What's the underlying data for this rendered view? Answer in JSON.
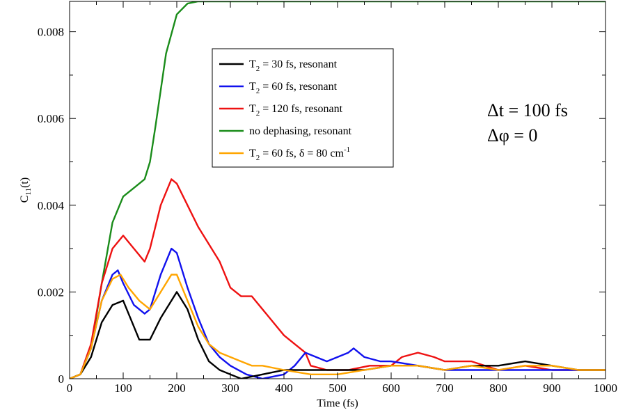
{
  "chart_data": {
    "type": "line",
    "xlabel": "Time (fs)",
    "ylabel": {
      "main": "C",
      "sub": "11",
      "suffix": "(t)"
    },
    "xlim": [
      0,
      1000
    ],
    "ylim": [
      0,
      0.0087
    ],
    "x_ticks": [
      0,
      100,
      200,
      300,
      400,
      500,
      600,
      700,
      800,
      900,
      1000
    ],
    "y_ticks": [
      0,
      0.002,
      0.004,
      0.006,
      0.008
    ],
    "y_tick_labels": [
      "0",
      "0.002",
      "0.004",
      "0.006",
      "0.008"
    ],
    "grid": false,
    "legend_position": "top-center",
    "annotations": [
      "Δt = 100 fs",
      "Δφ = 0"
    ],
    "series": [
      {
        "name": "no dephasing, resonant",
        "legend": {
          "pre": "no dephasing, resonant",
          "sub": "",
          "post": "",
          "sup": ""
        },
        "color": "#1a8c1a",
        "x": [
          0,
          20,
          40,
          60,
          80,
          100,
          120,
          140,
          150,
          160,
          180,
          200,
          220,
          240,
          260,
          300,
          400,
          500,
          600,
          700,
          800,
          900,
          1000
        ],
        "y": [
          0,
          0.0001,
          0.0007,
          0.0022,
          0.0036,
          0.0042,
          0.0044,
          0.0046,
          0.005,
          0.0058,
          0.0075,
          0.0084,
          0.00865,
          0.0087,
          0.0087,
          0.0087,
          0.0087,
          0.0087,
          0.0087,
          0.0087,
          0.0087,
          0.0087,
          0.0087
        ]
      },
      {
        "name": "T2 = 120 fs, resonant",
        "legend": {
          "pre": "T",
          "sub": "2",
          "post": " = 120 fs, resonant",
          "sup": ""
        },
        "color": "#ee1111",
        "x": [
          0,
          20,
          40,
          60,
          80,
          100,
          120,
          140,
          150,
          170,
          190,
          200,
          220,
          240,
          260,
          280,
          300,
          320,
          340,
          360,
          380,
          400,
          420,
          440,
          450,
          480,
          520,
          560,
          600,
          620,
          650,
          680,
          700,
          750,
          800,
          850,
          900,
          950,
          1000
        ],
        "y": [
          0,
          0.0001,
          0.0008,
          0.0022,
          0.003,
          0.0033,
          0.003,
          0.0027,
          0.003,
          0.004,
          0.0046,
          0.0045,
          0.004,
          0.0035,
          0.0031,
          0.0027,
          0.0021,
          0.0019,
          0.0019,
          0.0016,
          0.0013,
          0.001,
          0.0008,
          0.0006,
          0.0003,
          0.0002,
          0.0002,
          0.0003,
          0.0003,
          0.0005,
          0.0006,
          0.0005,
          0.0004,
          0.0004,
          0.0002,
          0.0003,
          0.0002,
          0.0002,
          0.0002
        ]
      },
      {
        "name": "T2 = 60 fs, resonant",
        "legend": {
          "pre": "T",
          "sub": "2",
          "post": " = 60 fs, resonant",
          "sup": ""
        },
        "color": "#1111ee",
        "x": [
          0,
          20,
          40,
          60,
          80,
          90,
          100,
          120,
          140,
          150,
          170,
          190,
          200,
          220,
          240,
          260,
          280,
          300,
          330,
          360,
          400,
          420,
          440,
          460,
          480,
          500,
          520,
          530,
          550,
          580,
          600,
          650,
          700,
          800,
          900,
          1000
        ],
        "y": [
          0,
          0.0001,
          0.0007,
          0.0018,
          0.0024,
          0.0025,
          0.0022,
          0.0017,
          0.0015,
          0.0016,
          0.0024,
          0.003,
          0.0029,
          0.0021,
          0.0014,
          0.0008,
          0.0005,
          0.0003,
          0.0001,
          0.0,
          0.0001,
          0.0003,
          0.0006,
          0.0005,
          0.0004,
          0.0005,
          0.0006,
          0.0007,
          0.0005,
          0.0004,
          0.0004,
          0.0003,
          0.0002,
          0.0002,
          0.0002,
          0.0002
        ]
      },
      {
        "name": "T2 = 30 fs, resonant",
        "legend": {
          "pre": "T",
          "sub": "2",
          "post": " = 30 fs, resonant",
          "sup": ""
        },
        "color": "#000000",
        "x": [
          0,
          20,
          40,
          60,
          80,
          100,
          120,
          130,
          150,
          170,
          190,
          200,
          220,
          240,
          260,
          280,
          300,
          320,
          360,
          400,
          450,
          500,
          550,
          600,
          650,
          700,
          750,
          800,
          850,
          900,
          950,
          1000
        ],
        "y": [
          0,
          0.0001,
          0.0005,
          0.0013,
          0.0017,
          0.0018,
          0.0012,
          0.0009,
          0.0009,
          0.0014,
          0.0018,
          0.002,
          0.0016,
          0.0009,
          0.0004,
          0.0002,
          0.0001,
          0.0,
          0.0001,
          0.0002,
          0.0002,
          0.0002,
          0.0002,
          0.0003,
          0.0003,
          0.0002,
          0.0003,
          0.0003,
          0.0004,
          0.0003,
          0.0002,
          0.0002
        ]
      },
      {
        "name": "T2 = 60 fs, δ = 80 cm-1",
        "legend": {
          "pre": "T",
          "sub": "2",
          "post": " = 60 fs, δ = 80 cm",
          "sup": "-1"
        },
        "color": "#ffa500",
        "x": [
          0,
          20,
          40,
          60,
          80,
          95,
          110,
          130,
          150,
          170,
          190,
          200,
          220,
          240,
          260,
          280,
          300,
          320,
          340,
          360,
          400,
          450,
          500,
          550,
          600,
          650,
          700,
          750,
          800,
          850,
          900,
          950,
          1000
        ],
        "y": [
          0,
          0.0001,
          0.0007,
          0.0018,
          0.0023,
          0.0024,
          0.0021,
          0.0018,
          0.0016,
          0.002,
          0.0024,
          0.0024,
          0.0018,
          0.0012,
          0.0008,
          0.0006,
          0.0005,
          0.0004,
          0.0003,
          0.0003,
          0.0002,
          0.0001,
          0.0001,
          0.0002,
          0.0003,
          0.0003,
          0.0002,
          0.0003,
          0.0002,
          0.0003,
          0.0003,
          0.0002,
          0.0002
        ]
      }
    ],
    "legend_order": [
      3,
      2,
      1,
      0,
      4
    ]
  }
}
